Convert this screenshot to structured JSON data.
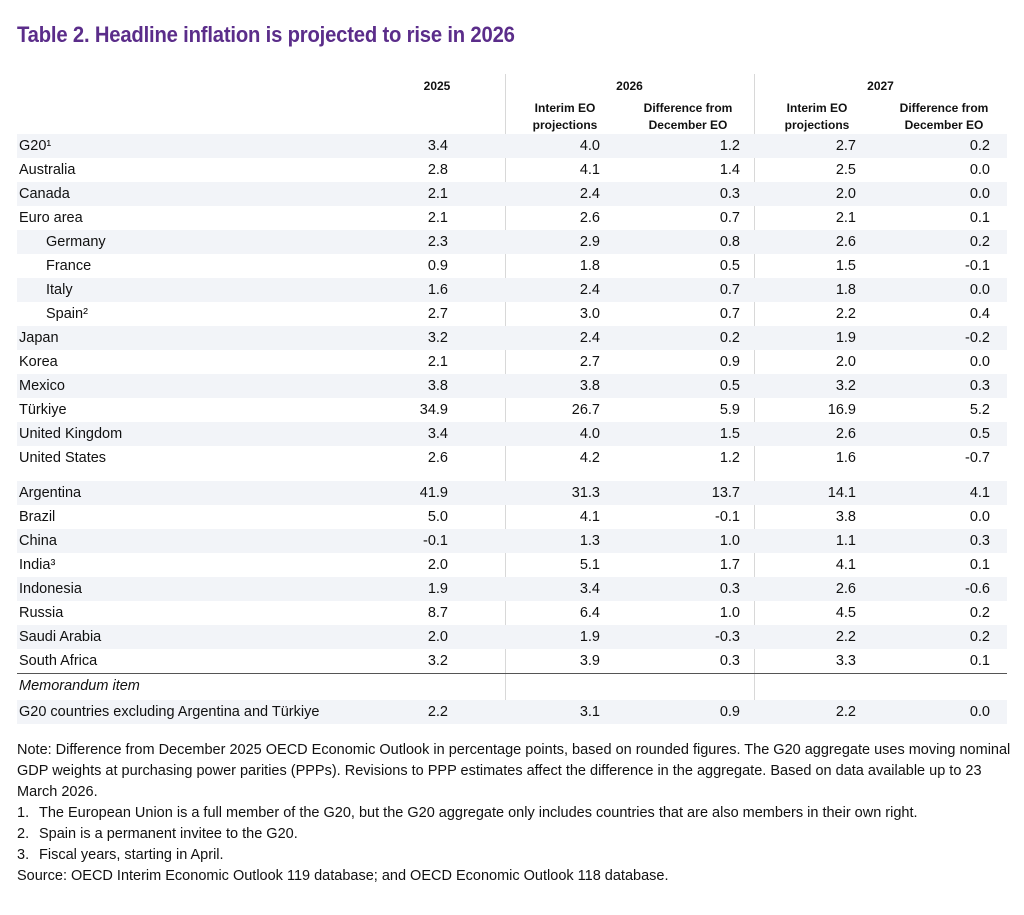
{
  "title": "Table  2. Headline inflation is projected to rise in 2026",
  "headers": {
    "y2025": "2025",
    "y2026": "2026",
    "y2027": "2027",
    "interim": "Interim EO projections",
    "diff": "Difference from December EO"
  },
  "rows": [
    {
      "label": "G20¹",
      "v": [
        "3.4",
        "4.0",
        "1.2",
        "2.7",
        "0.2"
      ]
    },
    {
      "label": "Australia",
      "v": [
        "2.8",
        "4.1",
        "1.4",
        "2.5",
        "0.0"
      ]
    },
    {
      "label": "Canada",
      "v": [
        "2.1",
        "2.4",
        "0.3",
        "2.0",
        "0.0"
      ]
    },
    {
      "label": "Euro area",
      "v": [
        "2.1",
        "2.6",
        "0.7",
        "2.1",
        "0.1"
      ]
    },
    {
      "label": "Germany",
      "v": [
        "2.3",
        "2.9",
        "0.8",
        "2.6",
        "0.2"
      ]
    },
    {
      "label": "France",
      "v": [
        "0.9",
        "1.8",
        "0.5",
        "1.5",
        "-0.1"
      ]
    },
    {
      "label": "Italy",
      "v": [
        "1.6",
        "2.4",
        "0.7",
        "1.8",
        "0.0"
      ]
    },
    {
      "label": "Spain²",
      "v": [
        "2.7",
        "3.0",
        "0.7",
        "2.2",
        "0.4"
      ]
    },
    {
      "label": "Japan",
      "v": [
        "3.2",
        "2.4",
        "0.2",
        "1.9",
        "-0.2"
      ]
    },
    {
      "label": "Korea",
      "v": [
        "2.1",
        "2.7",
        "0.9",
        "2.0",
        "0.0"
      ]
    },
    {
      "label": "Mexico",
      "v": [
        "3.8",
        "3.8",
        "0.5",
        "3.2",
        "0.3"
      ]
    },
    {
      "label": "Türkiye",
      "v": [
        "34.9",
        "26.7",
        "5.9",
        "16.9",
        "5.2"
      ]
    },
    {
      "label": "United Kingdom",
      "v": [
        "3.4",
        "4.0",
        "1.5",
        "2.6",
        "0.5"
      ]
    },
    {
      "label": "United States",
      "v": [
        "2.6",
        "4.2",
        "1.2",
        "1.6",
        "-0.7"
      ]
    },
    {
      "label": "Argentina",
      "v": [
        "41.9",
        "31.3",
        "13.7",
        "14.1",
        "4.1"
      ]
    },
    {
      "label": "Brazil",
      "v": [
        "5.0",
        "4.1",
        "-0.1",
        "3.8",
        "0.0"
      ]
    },
    {
      "label": "China",
      "v": [
        "-0.1",
        "1.3",
        "1.0",
        "1.1",
        "0.3"
      ]
    },
    {
      "label": "India³",
      "v": [
        "2.0",
        "5.1",
        "1.7",
        "4.1",
        "0.1"
      ]
    },
    {
      "label": "Indonesia",
      "v": [
        "1.9",
        "3.4",
        "0.3",
        "2.6",
        "-0.6"
      ]
    },
    {
      "label": "Russia",
      "v": [
        "8.7",
        "6.4",
        "1.0",
        "4.5",
        "0.2"
      ]
    },
    {
      "label": "Saudi Arabia",
      "v": [
        "2.0",
        "1.9",
        "-0.3",
        "2.2",
        "0.2"
      ]
    },
    {
      "label": "South Africa",
      "v": [
        "3.2",
        "3.9",
        "0.3",
        "3.3",
        "0.1"
      ]
    }
  ],
  "memo_label": "Memorandum item",
  "memo_row": {
    "label": "G20 countries excluding Argentina and Türkiye",
    "v": [
      "2.2",
      "3.1",
      "0.9",
      "2.2",
      "0.0"
    ]
  },
  "note": "Note: Difference from December 2025 OECD Economic Outlook in percentage points, based on rounded figures. The G20 aggregate uses moving nominal GDP weights at purchasing power parities (PPPs). Revisions to PPP estimates affect the difference in the aggregate. Based on data available up to 23 March 2026.",
  "footnotes": [
    {
      "n": "1.",
      "t": "The European Union is a full member of the G20, but the G20 aggregate only includes countries that are also members in their own right."
    },
    {
      "n": "2.",
      "t": "Spain is a permanent invitee to the G20."
    },
    {
      "n": "3.",
      "t": "Fiscal years, starting in April."
    }
  ],
  "source": "Source: OECD Interim Economic Outlook 119 database; and OECD Economic Outlook 118 database."
}
